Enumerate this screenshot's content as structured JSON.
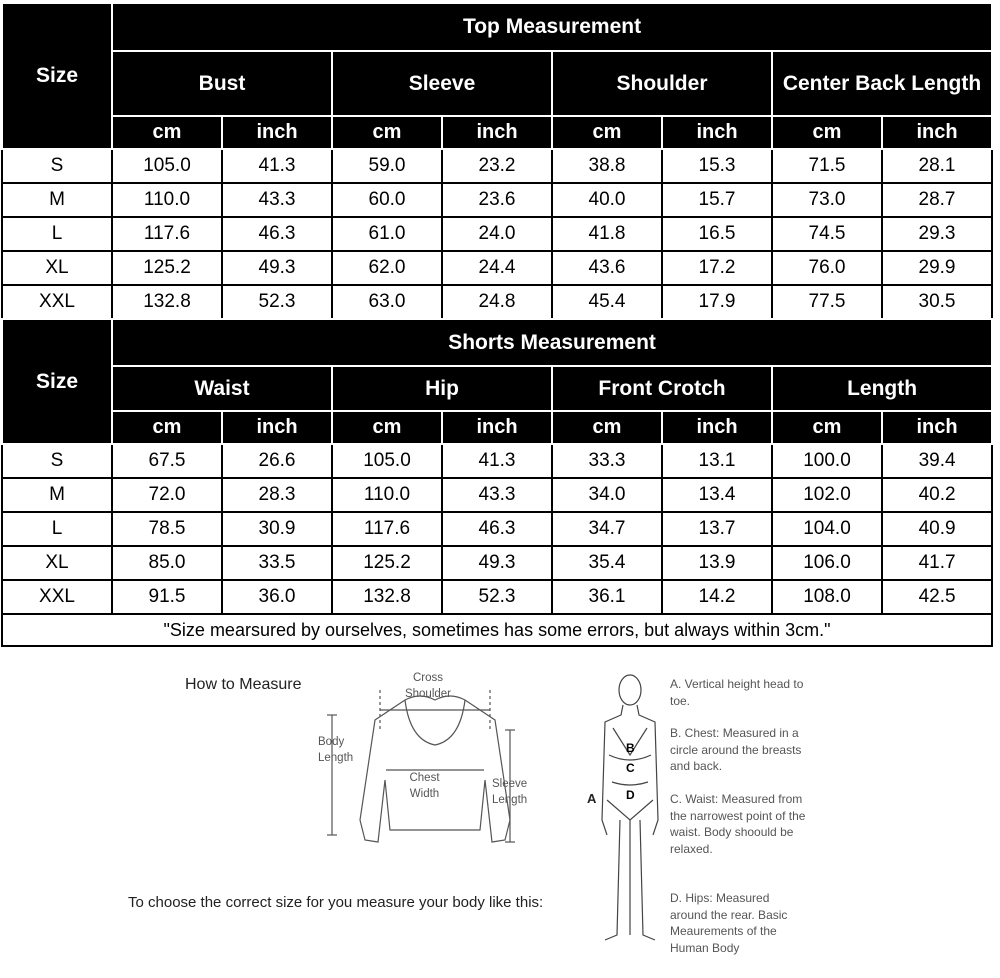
{
  "top": {
    "title": "Top Measurement",
    "size_label": "Size",
    "groups": [
      "Bust",
      "Sleeve",
      "Shoulder",
      "Center Back Length"
    ],
    "units": [
      "cm",
      "inch"
    ],
    "rows": [
      [
        "S",
        "105.0",
        "41.3",
        "59.0",
        "23.2",
        "38.8",
        "15.3",
        "71.5",
        "28.1"
      ],
      [
        "M",
        "110.0",
        "43.3",
        "60.0",
        "23.6",
        "40.0",
        "15.7",
        "73.0",
        "28.7"
      ],
      [
        "L",
        "117.6",
        "46.3",
        "61.0",
        "24.0",
        "41.8",
        "16.5",
        "74.5",
        "29.3"
      ],
      [
        "XL",
        "125.2",
        "49.3",
        "62.0",
        "24.4",
        "43.6",
        "17.2",
        "76.0",
        "29.9"
      ],
      [
        "XXL",
        "132.8",
        "52.3",
        "63.0",
        "24.8",
        "45.4",
        "17.9",
        "77.5",
        "30.5"
      ]
    ]
  },
  "shorts": {
    "title": "Shorts Measurement",
    "size_label": "Size",
    "groups": [
      "Waist",
      "Hip",
      "Front Crotch",
      "Length"
    ],
    "units": [
      "cm",
      "inch"
    ],
    "rows": [
      [
        "S",
        "67.5",
        "26.6",
        "105.0",
        "41.3",
        "33.3",
        "13.1",
        "100.0",
        "39.4"
      ],
      [
        "M",
        "72.0",
        "28.3",
        "110.0",
        "43.3",
        "34.0",
        "13.4",
        "102.0",
        "40.2"
      ],
      [
        "L",
        "78.5",
        "30.9",
        "117.6",
        "46.3",
        "34.7",
        "13.7",
        "104.0",
        "40.9"
      ],
      [
        "XL",
        "85.0",
        "33.5",
        "125.2",
        "49.3",
        "35.4",
        "13.9",
        "106.0",
        "41.7"
      ],
      [
        "XXL",
        "91.5",
        "36.0",
        "132.8",
        "52.3",
        "36.1",
        "14.2",
        "108.0",
        "42.5"
      ]
    ]
  },
  "note": "\"Size mearsured by ourselves, sometimes has some errors, but always within 3cm.\"",
  "guide": {
    "title": "How to Measure",
    "instruction": "To choose the correct size for you measure your body like this:",
    "sweater_labels": {
      "cross_shoulder": "Cross Shoulder",
      "body_length": "Body Length",
      "chest_width": "Chest Width",
      "sleeve_length": "Sleeve Length"
    },
    "body_letters": [
      "A",
      "B",
      "C",
      "D"
    ],
    "descriptions": [
      "A. Vertical height head to toe.",
      "B. Chest: Measured in a circle around the breasts and back.",
      "C. Waist: Measured from the narrowest point of the waist. Body shoould be relaxed.",
      "D. Hips: Measured around the rear. Basic Meaurements of the Human Body"
    ]
  }
}
